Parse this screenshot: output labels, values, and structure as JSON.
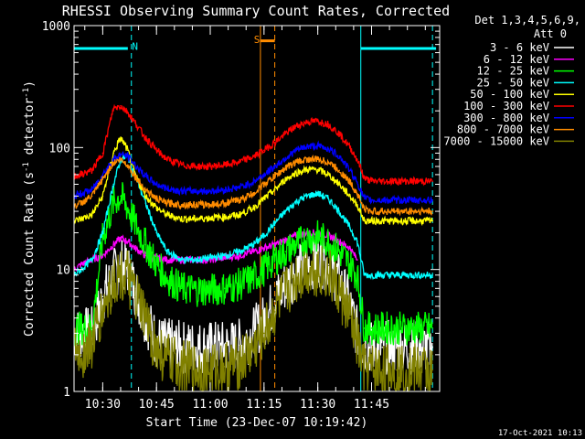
{
  "chart_data": {
    "type": "line",
    "title": "RHESSI Observing Summary Count Rates, Corrected",
    "ylabel": "Corrected Count Rate (s",
    "ylabel_sup1": "-1",
    "ylabel_mid": " detector",
    "ylabel_sup2": "-1",
    "ylabel_end": ")",
    "xlabel": "Start Time (23-Dec-07 10:19:42)",
    "timestamp": "17-Oct-2021 10:13",
    "yscale": "log",
    "ylim": [
      1,
      1000
    ],
    "xlim": [
      22,
      124
    ],
    "x_unit": "minutes after 10:00",
    "xticks": [
      {
        "v": 30,
        "label": "10:30"
      },
      {
        "v": 45,
        "label": "10:45"
      },
      {
        "v": 60,
        "label": "11:00"
      },
      {
        "v": 75,
        "label": "11:15"
      },
      {
        "v": 90,
        "label": "11:30"
      },
      {
        "v": 105,
        "label": "11:45"
      }
    ],
    "yticks": [
      {
        "v": 1,
        "label": "1"
      },
      {
        "v": 10,
        "label": "10"
      },
      {
        "v": 100,
        "label": "100"
      },
      {
        "v": 1000,
        "label": "1000"
      }
    ],
    "legend_header": [
      "Det 1,3,4,5,6,9,",
      "Att 0"
    ],
    "legend_position": "right",
    "series": [
      {
        "name": "3 - 6 keV",
        "color": "#ffffff",
        "x": [
          22,
          24,
          27,
          30,
          33,
          35,
          37,
          39,
          42,
          45,
          48,
          52,
          56,
          60,
          64,
          68,
          72,
          75,
          78,
          81,
          84,
          87,
          90,
          93,
          96,
          99,
          101,
          103,
          105,
          108,
          112,
          116,
          122
        ],
        "y": [
          3,
          3,
          3,
          6,
          9,
          11,
          10,
          7,
          4,
          2.6,
          2.4,
          2.3,
          2.3,
          2.3,
          2.3,
          2.4,
          3,
          3.8,
          5.5,
          7.5,
          9.5,
          11,
          12,
          11,
          8,
          5,
          3,
          2.3,
          2.3,
          2.3,
          2.3,
          2.3,
          2.3
        ]
      },
      {
        "name": "6 - 12 keV",
        "color": "#ff00ff",
        "x": [
          22,
          24,
          27,
          30,
          33,
          35,
          37,
          39,
          42,
          45,
          48,
          52,
          56,
          60,
          64,
          68,
          72,
          75,
          78,
          81,
          84,
          87,
          90,
          93,
          96,
          99,
          101
        ],
        "y": [
          10,
          11,
          12,
          13,
          16,
          18,
          17,
          15,
          13,
          12.5,
          12,
          12,
          12,
          12,
          12.5,
          13,
          14,
          15,
          16,
          17.5,
          19,
          20,
          20,
          19,
          17,
          15,
          12
        ]
      },
      {
        "name": "12 - 25 keV",
        "color": "#00ff00",
        "x": [
          22,
          24,
          27,
          30,
          33,
          35,
          37,
          39,
          42,
          45,
          48,
          52,
          56,
          60,
          64,
          68,
          72,
          75,
          78,
          81,
          84,
          87,
          90,
          93,
          96,
          99,
          101,
          103,
          105,
          108,
          112,
          116,
          122
        ],
        "y": [
          3.3,
          3.3,
          3.3,
          18,
          35,
          40,
          32,
          24,
          16,
          11,
          8.5,
          7,
          6.8,
          6.8,
          7,
          7.5,
          8.5,
          10,
          12,
          14,
          16,
          18,
          18.5,
          17,
          14,
          11,
          9,
          3.3,
          3.3,
          3.3,
          3.3,
          3.3,
          3.3
        ]
      },
      {
        "name": "25 - 50 keV",
        "color": "#00ffff",
        "x": [
          22,
          24,
          27,
          30,
          33,
          35,
          37,
          39,
          42,
          45,
          48,
          52,
          56,
          60,
          64,
          68,
          72,
          75,
          78,
          81,
          84,
          87,
          90,
          93,
          96,
          99,
          101,
          103,
          105,
          108,
          112,
          116,
          122
        ],
        "y": [
          9,
          10,
          12,
          20,
          50,
          80,
          85,
          60,
          35,
          20,
          14,
          12,
          12,
          12.5,
          13,
          14,
          16,
          19,
          24,
          30,
          36,
          40,
          42,
          38,
          30,
          22,
          17,
          9,
          9,
          9,
          9,
          9,
          9
        ]
      },
      {
        "name": "50 - 100 keV",
        "color": "#ffff00",
        "x": [
          22,
          24,
          27,
          30,
          33,
          35,
          37,
          39,
          42,
          45,
          48,
          52,
          56,
          60,
          64,
          68,
          72,
          75,
          78,
          81,
          84,
          87,
          90,
          93,
          96,
          99,
          101,
          103,
          105,
          108,
          112,
          116,
          122
        ],
        "y": [
          25,
          26,
          28,
          40,
          90,
          120,
          95,
          60,
          40,
          32,
          28,
          26,
          26,
          26.5,
          27,
          28,
          32,
          38,
          45,
          55,
          62,
          66,
          66,
          60,
          50,
          40,
          34,
          25,
          25,
          25,
          25,
          25,
          25
        ]
      },
      {
        "name": "100 - 300 keV",
        "color": "#ff0000",
        "x": [
          22,
          24,
          27,
          30,
          33,
          35,
          37,
          39,
          42,
          45,
          48,
          52,
          56,
          60,
          64,
          68,
          72,
          75,
          78,
          81,
          84,
          87,
          90,
          93,
          96,
          99,
          101,
          103,
          105,
          108,
          112,
          116,
          122
        ],
        "y": [
          58,
          60,
          65,
          90,
          210,
          220,
          195,
          160,
          120,
          95,
          80,
          72,
          70,
          70,
          72,
          76,
          84,
          95,
          110,
          130,
          150,
          162,
          165,
          155,
          130,
          100,
          80,
          56,
          53,
          53,
          53,
          53,
          53
        ]
      },
      {
        "name": "300 - 800 keV",
        "color": "#0000ff",
        "x": [
          22,
          24,
          27,
          30,
          33,
          35,
          37,
          39,
          42,
          45,
          48,
          52,
          56,
          60,
          64,
          68,
          72,
          75,
          78,
          81,
          84,
          87,
          90,
          93,
          96,
          99,
          101,
          103,
          105,
          108,
          112,
          116,
          122
        ],
        "y": [
          40,
          42,
          45,
          60,
          80,
          88,
          85,
          72,
          58,
          50,
          46,
          44,
          44,
          44,
          45,
          47,
          52,
          60,
          70,
          82,
          95,
          102,
          103,
          98,
          85,
          65,
          52,
          38,
          37,
          37,
          37,
          37,
          37
        ]
      },
      {
        "name": "800 - 7000 keV",
        "color": "#ff8c00",
        "x": [
          22,
          24,
          27,
          30,
          33,
          35,
          37,
          39,
          42,
          45,
          48,
          52,
          56,
          60,
          64,
          68,
          72,
          75,
          78,
          81,
          84,
          87,
          90,
          93,
          96,
          99,
          101,
          103,
          105,
          108,
          112,
          116,
          122
        ],
        "y": [
          33,
          35,
          40,
          55,
          75,
          80,
          72,
          58,
          45,
          38,
          35,
          34,
          34,
          34,
          35,
          37,
          42,
          50,
          58,
          68,
          76,
          80,
          80,
          76,
          65,
          52,
          42,
          31,
          30,
          30,
          30,
          30,
          30
        ]
      },
      {
        "name": "7000 - 15000 keV",
        "color": "#808000",
        "x": [
          22,
          24,
          27,
          30,
          33,
          35,
          37,
          39,
          42,
          45,
          48,
          52,
          56,
          60,
          64,
          68,
          72,
          75,
          78,
          81,
          84,
          87,
          90,
          93,
          96,
          99,
          101,
          103,
          105,
          108,
          112,
          116,
          122
        ],
        "y": [
          2,
          2,
          2.5,
          4.5,
          8,
          9,
          8.5,
          6,
          3.8,
          2.2,
          1.8,
          1.6,
          1.5,
          1.5,
          1.6,
          1.7,
          2.2,
          3,
          4.5,
          6.5,
          8.5,
          10,
          10,
          9,
          6.5,
          4,
          2.5,
          1.5,
          1.5,
          1.5,
          1.5,
          1.5,
          1.5
        ]
      }
    ],
    "attenuator_bars": [
      {
        "color": "#00ffff",
        "x0": 22,
        "x1": 37,
        "y": 650
      },
      {
        "color": "#00ffff",
        "x0": 102,
        "x1": 123,
        "y": 650
      },
      {
        "color": "#ff8c00",
        "x0": 74,
        "x1": 78,
        "y": 750
      }
    ],
    "annotations": [
      {
        "label": "N",
        "color": "#00ffff",
        "x": 39,
        "y": 680
      },
      {
        "label": "S",
        "color": "#ff8c00",
        "x": 73,
        "y": 770
      }
    ],
    "vlines": [
      {
        "x": 38,
        "color": "#00ffff",
        "dash": true
      },
      {
        "x": 102,
        "color": "#00ffff",
        "dash": false
      },
      {
        "x": 122,
        "color": "#00ffff",
        "dash": true
      },
      {
        "x": 74,
        "color": "#ff8c00",
        "dash": false
      },
      {
        "x": 78,
        "color": "#ff8c00",
        "dash": true
      }
    ]
  }
}
